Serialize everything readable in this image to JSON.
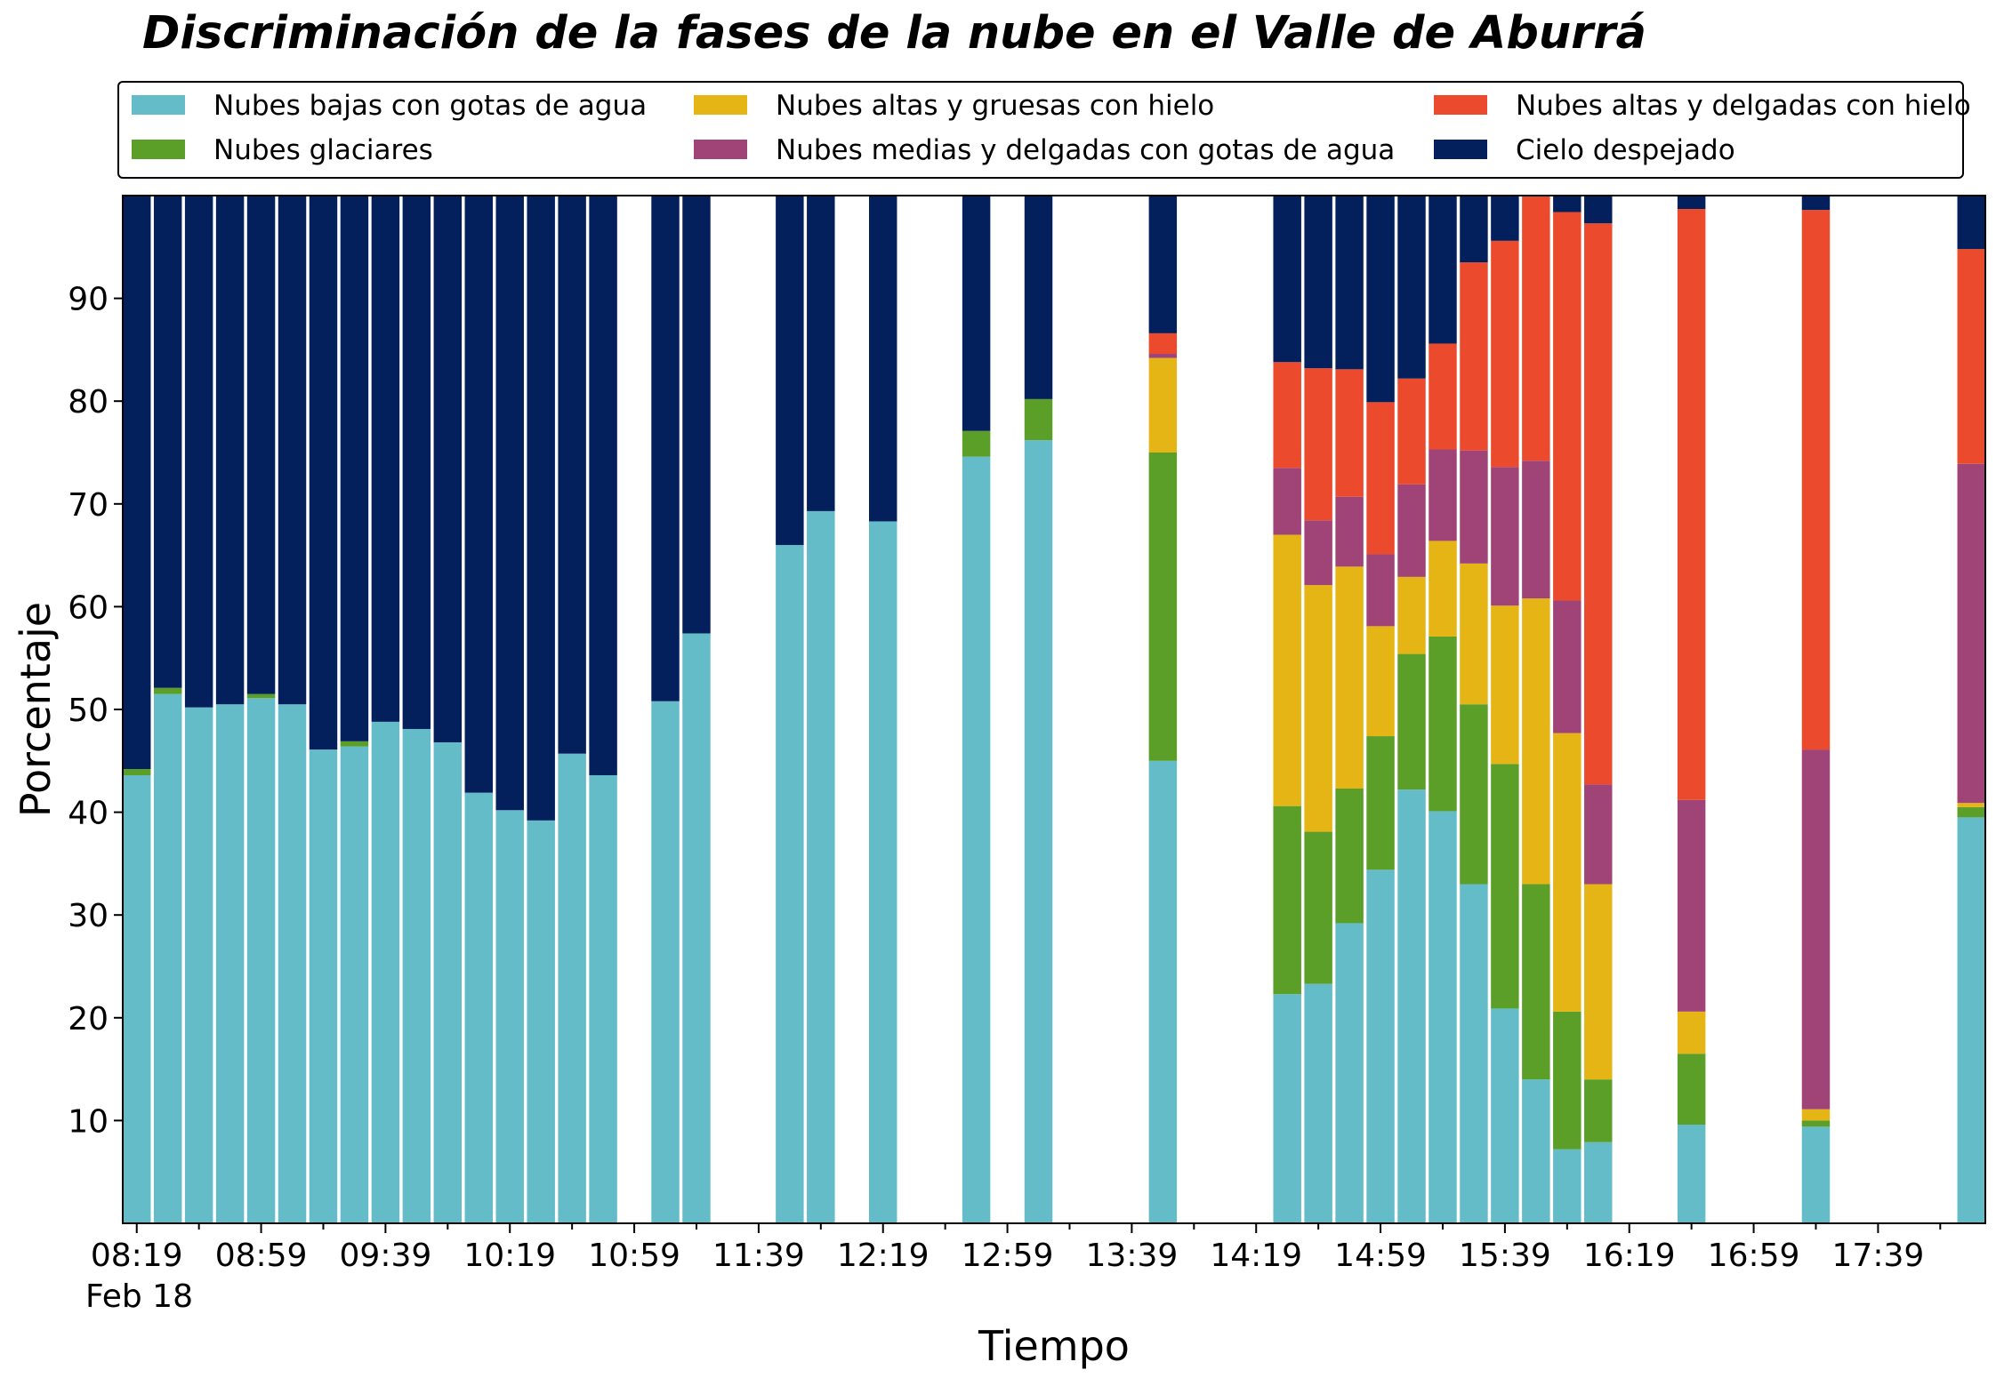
{
  "chart_data": {
    "type": "bar",
    "stacked": true,
    "title": "Discriminación de la fases de la nube en el Valle de Aburrá",
    "xlabel": "Tiempo",
    "ylabel": "Porcentaje",
    "ylim": [
      0,
      100
    ],
    "yticks": [
      10,
      20,
      30,
      40,
      50,
      60,
      70,
      80,
      90
    ],
    "x_date_label": "Feb 18",
    "x_start_minutes": 499,
    "x_step_minutes": 10,
    "x_count": 60,
    "xticks_major": [
      "08:19",
      "08:59",
      "09:39",
      "10:19",
      "10:59",
      "11:39",
      "12:19",
      "12:59",
      "13:39",
      "14:19",
      "14:59",
      "15:39",
      "16:19",
      "16:59",
      "17:39"
    ],
    "xticks_major_index": [
      0,
      4,
      8,
      12,
      16,
      20,
      24,
      28,
      32,
      36,
      40,
      44,
      48,
      52,
      56
    ],
    "legend_position": "top, outside plot",
    "grid": false,
    "series": [
      {
        "name": "Nubes bajas con gotas de agua",
        "color": "#64bcc8",
        "values": [
          43.6,
          51.5,
          50.2,
          50.5,
          51.1,
          50.5,
          46.1,
          46.4,
          48.8,
          48.1,
          46.8,
          41.9,
          40.2,
          39.2,
          45.7,
          43.6,
          null,
          50.8,
          57.4,
          null,
          null,
          66.0,
          69.3,
          null,
          68.3,
          null,
          null,
          74.6,
          null,
          76.2,
          null,
          null,
          null,
          45.0,
          null,
          null,
          null,
          22.3,
          23.3,
          29.2,
          34.4,
          42.2,
          40.1,
          33.0,
          20.9,
          14.0,
          7.2,
          7.9,
          null,
          null,
          9.6,
          null,
          null,
          null,
          9.4,
          null,
          null,
          null,
          null,
          39.5
        ]
      },
      {
        "name": "Nubes glaciares",
        "color": "#5b9e28",
        "values": [
          0.6,
          0.6,
          0,
          0,
          0.4,
          0,
          0,
          0.5,
          0,
          0,
          0,
          0,
          0,
          0,
          0,
          0,
          null,
          0,
          0,
          null,
          null,
          0,
          0,
          null,
          0,
          null,
          null,
          2.5,
          null,
          4.0,
          null,
          null,
          null,
          30.0,
          null,
          null,
          null,
          18.3,
          14.8,
          13.1,
          13.0,
          13.2,
          17.0,
          17.5,
          23.8,
          19.0,
          13.4,
          6.1,
          null,
          null,
          6.9,
          null,
          null,
          null,
          0.6,
          null,
          null,
          null,
          null,
          1.0
        ]
      },
      {
        "name": "Nubes altas y gruesas con hielo",
        "color": "#e5b516",
        "values": [
          0,
          0,
          0,
          0,
          0,
          0,
          0,
          0,
          0,
          0,
          0,
          0,
          0,
          0,
          0,
          0,
          null,
          0,
          0,
          null,
          null,
          0,
          0,
          null,
          0,
          null,
          null,
          0,
          null,
          0,
          null,
          null,
          null,
          9.2,
          null,
          null,
          null,
          26.4,
          24.0,
          21.6,
          10.7,
          7.5,
          9.3,
          13.7,
          15.4,
          27.8,
          27.1,
          19.0,
          null,
          null,
          4.1,
          null,
          null,
          null,
          1.1,
          null,
          null,
          null,
          null,
          0.4
        ]
      },
      {
        "name": "Nubes medias y delgadas con gotas de agua",
        "color": "#a04478",
        "values": [
          0,
          0,
          0,
          0,
          0,
          0,
          0,
          0,
          0,
          0,
          0,
          0,
          0,
          0,
          0,
          0,
          null,
          0,
          0,
          null,
          null,
          0,
          0,
          null,
          0,
          null,
          null,
          0,
          null,
          0,
          null,
          null,
          null,
          0.4,
          null,
          null,
          null,
          6.5,
          6.3,
          6.8,
          7.0,
          9.0,
          8.9,
          11.0,
          13.5,
          13.4,
          12.9,
          9.7,
          null,
          null,
          20.6,
          null,
          null,
          null,
          35.0,
          null,
          null,
          null,
          null,
          33.0
        ]
      },
      {
        "name": "Nubes altas y delgadas con hielo",
        "color": "#ec4a2d",
        "values": [
          0,
          0,
          0,
          0,
          0,
          0,
          0,
          0,
          0,
          0,
          0,
          0,
          0,
          0,
          0,
          0,
          null,
          0,
          0,
          null,
          null,
          0,
          0,
          null,
          0,
          null,
          null,
          0,
          null,
          0,
          null,
          null,
          null,
          2.0,
          null,
          null,
          null,
          10.3,
          14.8,
          12.4,
          14.8,
          10.3,
          10.3,
          18.3,
          22.0,
          25.9,
          37.8,
          54.6,
          null,
          null,
          57.5,
          null,
          null,
          null,
          52.5,
          null,
          null,
          null,
          null,
          20.9
        ]
      },
      {
        "name": "Cielo despejado",
        "color": "#04205c",
        "values": [
          55.8,
          47.9,
          49.8,
          49.5,
          48.5,
          49.5,
          53.9,
          53.1,
          51.2,
          51.9,
          53.2,
          58.1,
          59.8,
          60.8,
          54.3,
          56.4,
          null,
          49.2,
          42.6,
          null,
          null,
          34.0,
          30.7,
          null,
          31.7,
          null,
          null,
          22.9,
          null,
          19.8,
          null,
          null,
          null,
          13.4,
          null,
          null,
          null,
          16.2,
          16.8,
          16.9,
          20.2,
          17.8,
          14.4,
          6.5,
          4.4,
          0,
          1.6,
          2.7,
          null,
          null,
          1.3,
          null,
          null,
          null,
          1.4,
          null,
          null,
          null,
          null,
          5.2
        ]
      }
    ]
  }
}
